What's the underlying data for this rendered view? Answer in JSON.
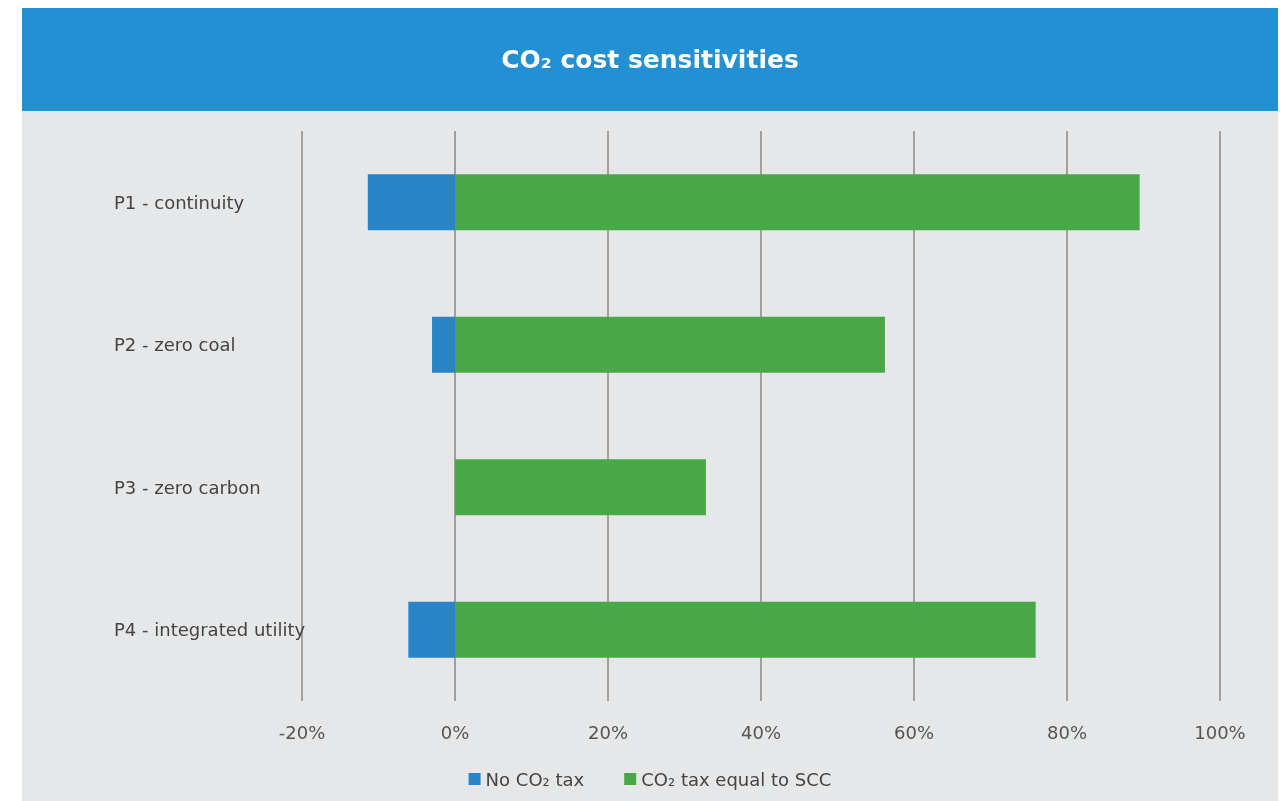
{
  "chart_data": {
    "type": "bar",
    "title": "CO₂ cost sensitivities",
    "orientation": "horizontal",
    "stacked": true,
    "categories": [
      "P1 - continuity",
      "P2 - zero coal",
      "P3 - zero carbon",
      "P4 - integrated utility"
    ],
    "series": [
      {
        "name": "No CO₂ tax",
        "color": "#2a84c6",
        "values": [
          -11.4,
          -3,
          null,
          -6.1
        ]
      },
      {
        "name": "CO₂ tax equal to SCC",
        "color": "#48a746",
        "values": [
          89.5,
          56.2,
          32.8,
          75.9
        ]
      }
    ],
    "xlim": [
      -20,
      100
    ],
    "xticks": [
      {
        "value": -20,
        "label": "-20%"
      },
      {
        "value": 0,
        "label": "0%"
      },
      {
        "value": 20,
        "label": "20%"
      },
      {
        "value": 40,
        "label": "40%"
      },
      {
        "value": 60,
        "label": "60%"
      },
      {
        "value": 80,
        "label": "80%"
      },
      {
        "value": 100,
        "label": "100%"
      }
    ],
    "grid": "x",
    "legend": "bottom"
  }
}
